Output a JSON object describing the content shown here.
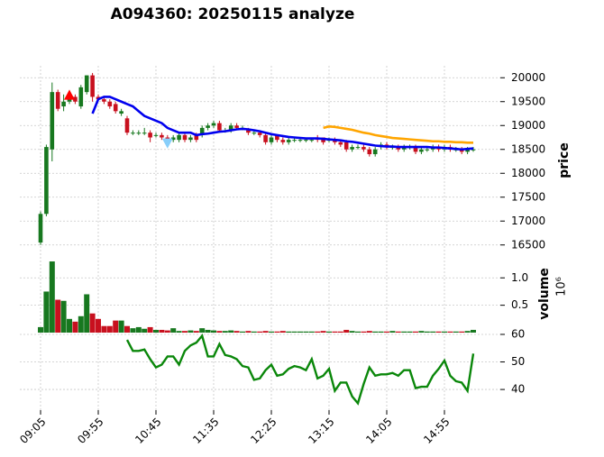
{
  "chart_data": {
    "type": "candlestick",
    "title": "A094360: 20250115 analyze",
    "categories": [
      "09:05",
      null,
      null,
      null,
      null,
      null,
      null,
      null,
      null,
      null,
      "09:55",
      null,
      null,
      null,
      null,
      null,
      null,
      null,
      null,
      null,
      "10:45",
      null,
      null,
      null,
      null,
      null,
      null,
      null,
      null,
      null,
      "11:35",
      null,
      null,
      null,
      null,
      null,
      null,
      null,
      null,
      null,
      "12:25",
      null,
      null,
      null,
      null,
      null,
      null,
      null,
      null,
      null,
      "13:15",
      null,
      null,
      null,
      null,
      null,
      null,
      null,
      null,
      null,
      "14:05",
      null,
      null,
      null,
      null,
      null,
      null,
      null,
      null,
      null,
      "14:55",
      null,
      null,
      null,
      null,
      null
    ],
    "open": [
      16550,
      17150,
      18500,
      19700,
      19400,
      19500,
      19600,
      19400,
      19700,
      20050,
      19600,
      19550,
      19500,
      19450,
      19250,
      19150,
      18850,
      18850,
      18850,
      18850,
      18800,
      18800,
      18750,
      18700,
      18700,
      18800,
      18700,
      18800,
      18800,
      18950,
      19000,
      19050,
      18900,
      18900,
      19000,
      18950,
      18900,
      18850,
      18850,
      18800,
      18650,
      18800,
      18700,
      18650,
      18700,
      18700,
      18700,
      18700,
      18750,
      18750,
      18700,
      18700,
      18650,
      18650,
      18500,
      18550,
      18550,
      18500,
      18400,
      18550,
      18600,
      18550,
      18550,
      18500,
      18550,
      18550,
      18450,
      18500,
      18500,
      18550,
      18500,
      18550,
      18500,
      18500,
      18450,
      18500
    ],
    "high": [
      17200,
      18600,
      19900,
      19750,
      19650,
      19700,
      19650,
      19850,
      20050,
      20100,
      19650,
      19600,
      19550,
      19500,
      19350,
      19200,
      18900,
      18900,
      18950,
      18900,
      18850,
      18850,
      18800,
      18800,
      18850,
      18850,
      18800,
      18850,
      19000,
      19050,
      19100,
      19100,
      18950,
      19050,
      19050,
      19000,
      18950,
      18900,
      18900,
      18850,
      18800,
      18800,
      18750,
      18750,
      18750,
      18750,
      18750,
      18750,
      18800,
      18750,
      18750,
      18750,
      18700,
      18700,
      18600,
      18600,
      18600,
      18550,
      18550,
      18650,
      18650,
      18600,
      18600,
      18600,
      18600,
      18600,
      18550,
      18550,
      18600,
      18600,
      18600,
      18600,
      18550,
      18550,
      18550,
      18550
    ],
    "low": [
      16500,
      17100,
      18250,
      19300,
      19300,
      19450,
      19450,
      19350,
      19650,
      19500,
      19500,
      19450,
      19350,
      19250,
      19200,
      18800,
      18800,
      18800,
      18800,
      18650,
      18750,
      18700,
      18650,
      18650,
      18650,
      18650,
      18650,
      18650,
      18750,
      18900,
      18950,
      18850,
      18850,
      18850,
      18900,
      18900,
      18800,
      18800,
      18750,
      18600,
      18600,
      18650,
      18600,
      18600,
      18650,
      18650,
      18650,
      18650,
      18650,
      18600,
      18650,
      18600,
      18550,
      18450,
      18450,
      18500,
      18450,
      18350,
      18350,
      18500,
      18500,
      18500,
      18450,
      18450,
      18500,
      18400,
      18400,
      18450,
      18450,
      18450,
      18450,
      18450,
      18450,
      18400,
      18400,
      18450
    ],
    "close": [
      17150,
      18550,
      19700,
      19350,
      19500,
      19650,
      19500,
      19800,
      20050,
      19600,
      19550,
      19500,
      19400,
      19300,
      19300,
      18850,
      18850,
      18850,
      18850,
      18750,
      18800,
      18750,
      18700,
      18750,
      18800,
      18700,
      18750,
      18700,
      18950,
      19000,
      19050,
      18900,
      18900,
      19000,
      18950,
      18950,
      18850,
      18850,
      18800,
      18650,
      18750,
      18700,
      18650,
      18700,
      18700,
      18700,
      18700,
      18700,
      18700,
      18650,
      18700,
      18650,
      18600,
      18500,
      18550,
      18550,
      18500,
      18400,
      18500,
      18600,
      18550,
      18550,
      18500,
      18550,
      18550,
      18450,
      18500,
      18500,
      18550,
      18500,
      18550,
      18500,
      18500,
      18450,
      18500,
      18500
    ],
    "up_color": "#17781f",
    "down_color": "#c8101e",
    "ylabel": "price",
    "ylim": [
      16250,
      20250
    ],
    "yticks": [
      16500,
      17000,
      17500,
      18000,
      18500,
      19000,
      19500,
      20000
    ],
    "grid": true,
    "overlays": [
      {
        "color": "#0000ee",
        "values": [
          null,
          null,
          null,
          null,
          null,
          null,
          null,
          null,
          null,
          19250,
          19550,
          19600,
          19600,
          19550,
          19500,
          19450,
          19400,
          19300,
          19200,
          19150,
          19100,
          19050,
          18950,
          18900,
          18850,
          18850,
          18850,
          18800,
          18820,
          18830,
          18850,
          18870,
          18880,
          18900,
          18920,
          18930,
          18920,
          18900,
          18880,
          18850,
          18820,
          18800,
          18780,
          18760,
          18750,
          18740,
          18730,
          18730,
          18730,
          18720,
          18710,
          18700,
          18690,
          18670,
          18660,
          18640,
          18620,
          18600,
          18580,
          18570,
          18560,
          18560,
          18550,
          18550,
          18550,
          18550,
          18550,
          18550,
          18540,
          18540,
          18530,
          18520,
          18510,
          18500,
          18510,
          18520
        ]
      },
      {
        "color": "#ffa500",
        "values": [
          null,
          null,
          null,
          null,
          null,
          null,
          null,
          null,
          null,
          null,
          null,
          null,
          null,
          null,
          null,
          null,
          null,
          null,
          null,
          null,
          null,
          null,
          null,
          null,
          null,
          null,
          null,
          null,
          null,
          null,
          null,
          null,
          null,
          null,
          null,
          null,
          null,
          null,
          null,
          null,
          null,
          null,
          null,
          null,
          null,
          null,
          null,
          null,
          null,
          18950,
          18980,
          18970,
          18950,
          18930,
          18910,
          18880,
          18850,
          18830,
          18800,
          18780,
          18760,
          18740,
          18730,
          18720,
          18710,
          18700,
          18690,
          18680,
          18670,
          18670,
          18660,
          18660,
          18650,
          18650,
          18640,
          18640
        ]
      }
    ],
    "signals": [
      {
        "shape": "triangle-up",
        "color": "#ff0000",
        "x": 5,
        "value": 19620
      },
      {
        "shape": "triangle-down",
        "color": "#87cefa",
        "x": 22,
        "value": 18650
      }
    ],
    "volume": {
      "label": "volume",
      "offset_label": "10⁶",
      "values": [
        0.1,
        0.75,
        1.3,
        0.6,
        0.58,
        0.25,
        0.2,
        0.3,
        0.7,
        0.35,
        0.25,
        0.12,
        0.12,
        0.22,
        0.22,
        0.12,
        0.08,
        0.1,
        0.07,
        0.1,
        0.05,
        0.05,
        0.04,
        0.08,
        0.03,
        0.03,
        0.04,
        0.03,
        0.08,
        0.05,
        0.04,
        0.03,
        0.03,
        0.04,
        0.03,
        0.02,
        0.03,
        0.02,
        0.02,
        0.03,
        0.02,
        0.02,
        0.03,
        0.02,
        0.02,
        0.02,
        0.02,
        0.02,
        0.02,
        0.03,
        0.02,
        0.02,
        0.02,
        0.05,
        0.03,
        0.02,
        0.02,
        0.03,
        0.02,
        0.02,
        0.02,
        0.03,
        0.02,
        0.02,
        0.02,
        0.02,
        0.03,
        0.02,
        0.02,
        0.02,
        0.02,
        0.02,
        0.02,
        0.02,
        0.03,
        0.05
      ],
      "ylim": [
        0,
        1.35
      ],
      "yticks": [
        0.5,
        {
          "value": 1,
          "label": "1.0"
        }
      ]
    },
    "indicator": {
      "color": "#0a870a",
      "values": [
        null,
        null,
        null,
        null,
        null,
        null,
        null,
        null,
        null,
        null,
        null,
        null,
        null,
        null,
        null,
        58,
        54,
        54,
        54.5,
        51,
        48,
        49,
        52,
        52,
        49,
        54,
        56,
        57,
        59.5,
        52,
        52,
        56.5,
        52.5,
        52,
        51,
        48.5,
        48,
        43.5,
        44,
        47,
        49,
        45,
        45.5,
        47.5,
        48.5,
        48,
        47,
        51,
        44,
        45,
        47.5,
        39.5,
        42.5,
        42.5,
        37.5,
        35,
        42,
        48,
        45,
        45.5,
        45.5,
        46,
        45,
        47,
        47,
        40.5,
        41,
        41,
        45,
        47.5,
        50.5,
        45,
        43,
        42.5,
        39.5,
        53
      ],
      "ylim": [
        32.5,
        61.3
      ],
      "yticks": [
        40,
        50,
        60
      ]
    }
  }
}
